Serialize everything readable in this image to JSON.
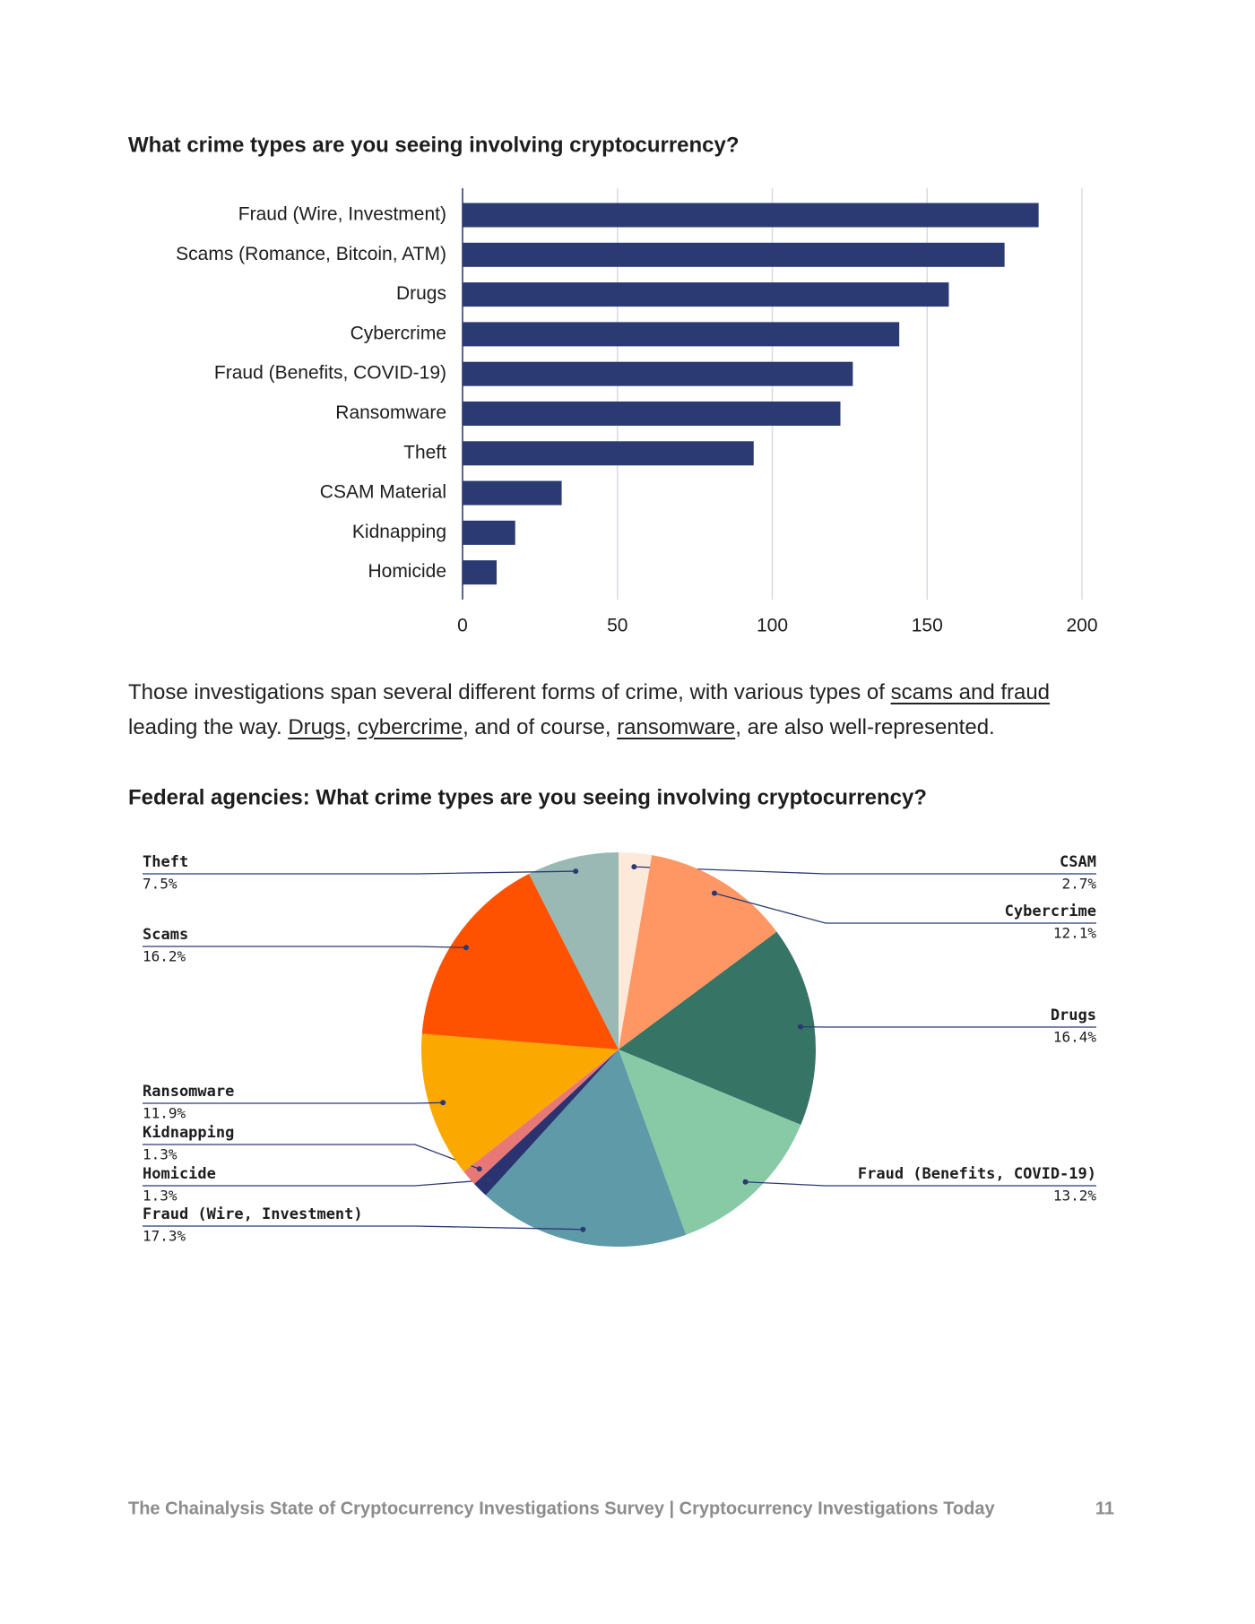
{
  "chart_data": [
    {
      "type": "bar",
      "orientation": "horizontal",
      "title": "What crime types are you seeing involving cryptocurrency?",
      "categories": [
        "Fraud (Wire, Investment)",
        "Scams (Romance, Bitcoin, ATM)",
        "Drugs",
        "Cybercrime",
        "Fraud (Benefits, COVID-19)",
        "Ransomware",
        "Theft",
        "CSAM Material",
        "Kidnapping",
        "Homicide"
      ],
      "values": [
        186,
        175,
        157,
        141,
        126,
        122,
        94,
        32,
        17,
        11
      ],
      "color": "#2b3a73",
      "xlim": [
        0,
        200
      ],
      "xticks": [
        0,
        50,
        100,
        150,
        200
      ],
      "grid": true
    },
    {
      "type": "pie",
      "title": "Federal agencies: What crime types are you seeing involving cryptocurrency?",
      "categories": [
        "CSAM",
        "Cybercrime",
        "Drugs",
        "Fraud (Benefits, COVID-19)",
        "Fraud (Wire, Investment)",
        "Homicide",
        "Kidnapping",
        "Ransomware",
        "Scams",
        "Theft"
      ],
      "values": [
        2.7,
        12.1,
        16.4,
        13.2,
        17.3,
        1.3,
        1.3,
        11.9,
        16.2,
        7.5
      ],
      "value_labels": [
        "2.7%",
        "12.1%",
        "16.4%",
        "13.2%",
        "17.3%",
        "1.3%",
        "1.3%",
        "11.9%",
        "16.2%",
        "7.5%"
      ],
      "colors": [
        "#fde9d9",
        "#fe9763",
        "#367466",
        "#88c9a6",
        "#5e9aa8",
        "#2a3370",
        "#e87878",
        "#fba800",
        "#fe5200",
        "#9ab8b4"
      ]
    }
  ],
  "paragraph": [
    {
      "text": "Those investigations span several different forms of crime, with various types of ",
      "link": false
    },
    {
      "text": "scams and fraud",
      "link": true
    },
    {
      "text": " leading the way. ",
      "link": false
    },
    {
      "text": "Drugs",
      "link": true
    },
    {
      "text": ", ",
      "link": false
    },
    {
      "text": "cybercrime",
      "link": true
    },
    {
      "text": ", and of course, ",
      "link": false
    },
    {
      "text": "ransomware",
      "link": true
    },
    {
      "text": ", are also well-represented.",
      "link": false
    }
  ],
  "footer": {
    "text": "The Chainalysis State of Cryptocurrency Investigations Survey | Cryptocurrency Investigations Today",
    "page": "11"
  }
}
